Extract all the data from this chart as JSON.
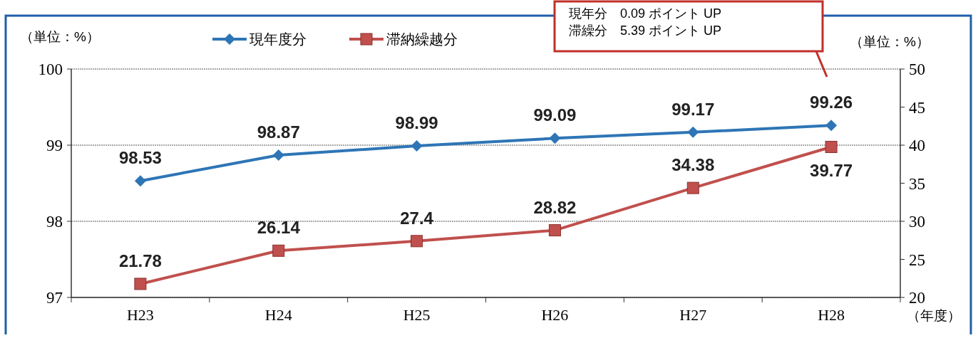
{
  "chart_data": {
    "type": "line",
    "categories": [
      "H23",
      "H24",
      "H25",
      "H26",
      "H27",
      "H28"
    ],
    "series": [
      {
        "name": "現年度分",
        "color": "#2e75b6",
        "values": [
          98.53,
          98.87,
          98.99,
          99.09,
          99.17,
          99.26
        ],
        "marker": "diamond"
      },
      {
        "name": "滞納繰越分",
        "color": "#c0504d",
        "values": [
          21.78,
          26.14,
          27.4,
          28.82,
          34.38,
          39.77
        ],
        "marker": "square",
        "axis": "y2"
      }
    ],
    "ylim": [
      97,
      100
    ],
    "yticks": [
      97,
      98,
      99,
      100
    ],
    "y2lim": [
      20,
      50
    ],
    "y2ticks": [
      20,
      25,
      30,
      35,
      40,
      45,
      50
    ],
    "ylabel": "（単位：%）",
    "y2label": "（単位：%）",
    "xlabel": "（年度）",
    "annotations": [
      "現年分　0.09 ポイント UP",
      "滞繰分　5.39 ポイント UP"
    ],
    "data_labels": true,
    "grid": "y",
    "legend": "top"
  }
}
